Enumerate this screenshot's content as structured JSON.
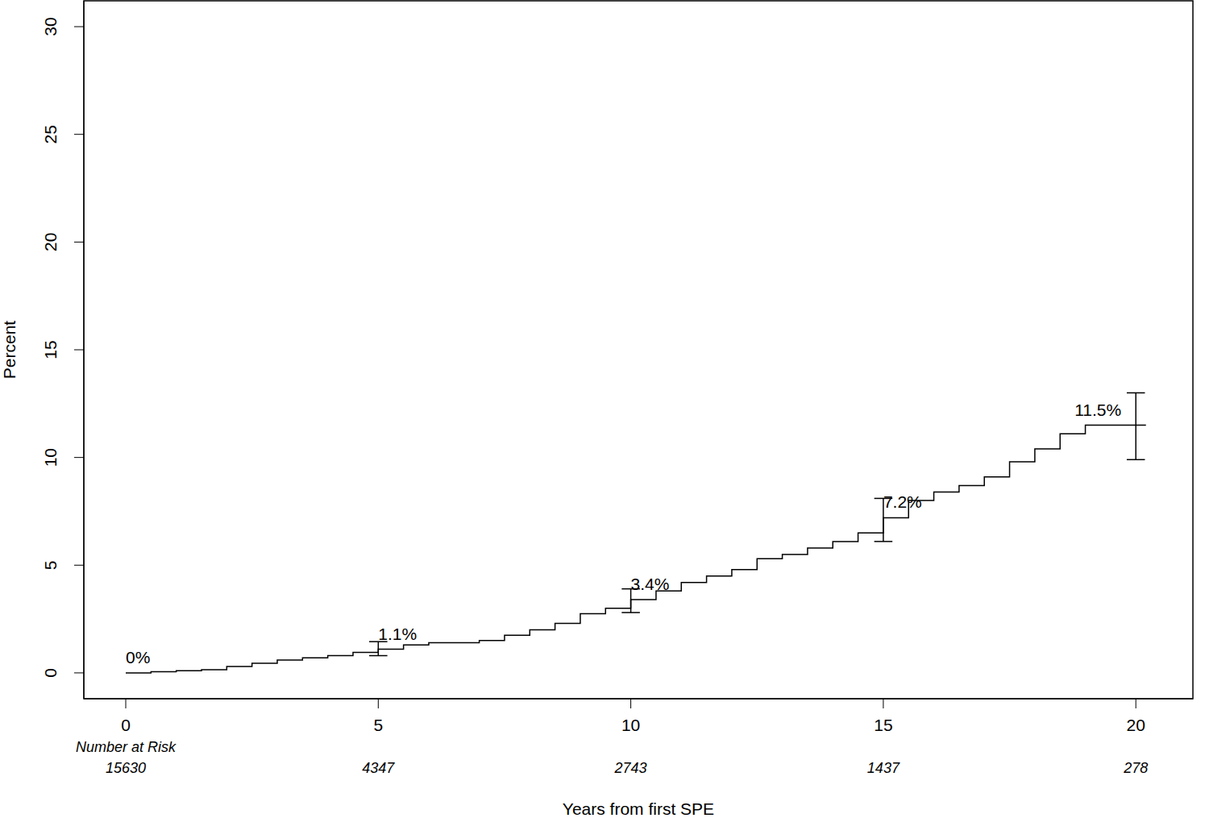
{
  "chart_data": {
    "type": "line",
    "line_style": "step",
    "color": "#000000",
    "xlabel": "Years from first SPE",
    "ylabel": "Percent",
    "xlim": [
      -0.83,
      21.13
    ],
    "ylim": [
      -1.2,
      31.2
    ],
    "xticks": [
      0,
      5,
      10,
      15,
      20
    ],
    "yticks": [
      0,
      5,
      10,
      15,
      20,
      25,
      30
    ],
    "x": [
      0,
      0.5,
      1,
      1.5,
      2,
      2.5,
      3,
      3.5,
      4,
      4.5,
      5,
      5.5,
      6,
      6.5,
      7,
      7.5,
      8,
      8.5,
      9,
      9.5,
      10,
      10.5,
      11,
      11.5,
      12,
      12.5,
      13,
      13.5,
      14,
      14.5,
      15,
      15.5,
      16,
      16.5,
      17,
      17.5,
      18,
      18.5,
      19,
      20.2
    ],
    "values": [
      0,
      0.05,
      0.1,
      0.15,
      0.3,
      0.45,
      0.6,
      0.7,
      0.8,
      0.95,
      1.1,
      1.3,
      1.4,
      1.4,
      1.5,
      1.75,
      2.0,
      2.3,
      2.75,
      3.0,
      3.4,
      3.8,
      4.2,
      4.5,
      4.8,
      5.3,
      5.5,
      5.8,
      6.1,
      6.5,
      7.2,
      8.0,
      8.4,
      8.7,
      9.1,
      9.8,
      10.4,
      11.1,
      11.5,
      11.5
    ],
    "error_bars": {
      "x": [
        5,
        10,
        15,
        20
      ],
      "lower": [
        0.8,
        2.8,
        6.1,
        9.9
      ],
      "upper": [
        1.45,
        3.9,
        8.1,
        13.0
      ]
    },
    "annotations": [
      {
        "x": 0,
        "y": 0,
        "text": "0%"
      },
      {
        "x": 5,
        "y": 1.1,
        "text": "1.1%"
      },
      {
        "x": 10,
        "y": 3.4,
        "text": "3.4%"
      },
      {
        "x": 15,
        "y": 7.2,
        "text": "7.2%"
      },
      {
        "x": 20,
        "y": 11.5,
        "text": "11.5%"
      }
    ],
    "number_at_risk": {
      "title": "Number at Risk",
      "x": [
        0,
        5,
        10,
        15,
        20
      ],
      "values": [
        15630,
        4347,
        2743,
        1437,
        278
      ]
    }
  }
}
